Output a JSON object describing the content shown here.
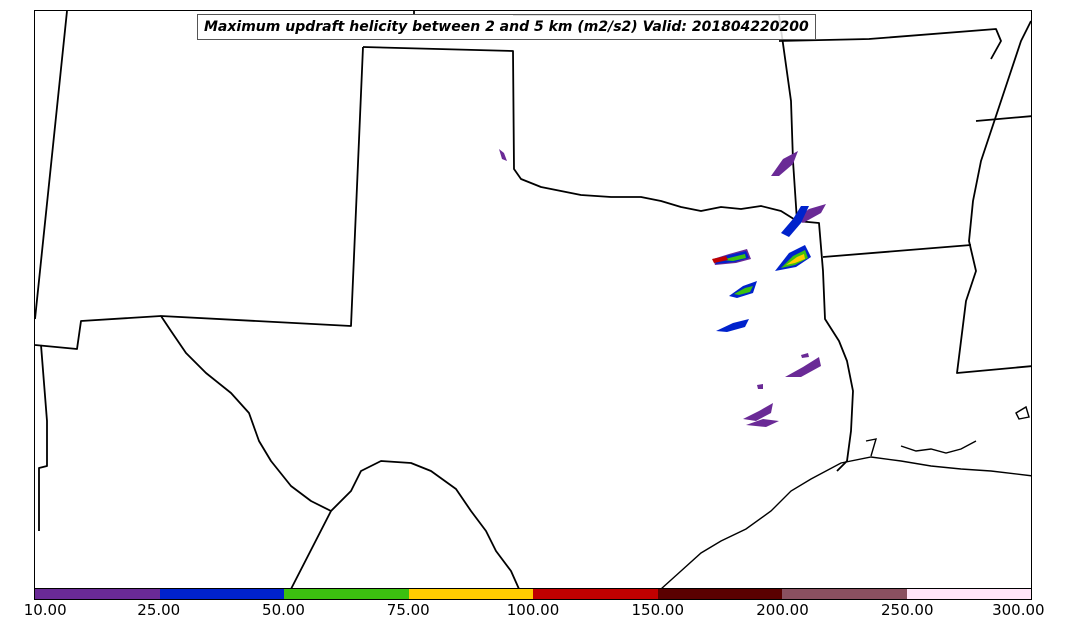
{
  "title": "Maximum updraft helicity between 2 and 5 km (m2/s2) Valid: 201804220200",
  "colorbar": {
    "ticks": [
      "10.00",
      "25.00",
      "50.00",
      "75.00",
      "100.00",
      "150.00",
      "200.00",
      "250.00",
      "300.00"
    ],
    "colors": [
      "#6a2a96",
      "#0022cc",
      "#3cc010",
      "#ffcc00",
      "#c00000",
      "#5a0000",
      "#8a5060",
      "#ffe4f8"
    ]
  },
  "map": {
    "region": "Southern Plains / Texas",
    "features": [
      "state-borders",
      "coastline",
      "helicity-swaths"
    ]
  }
}
